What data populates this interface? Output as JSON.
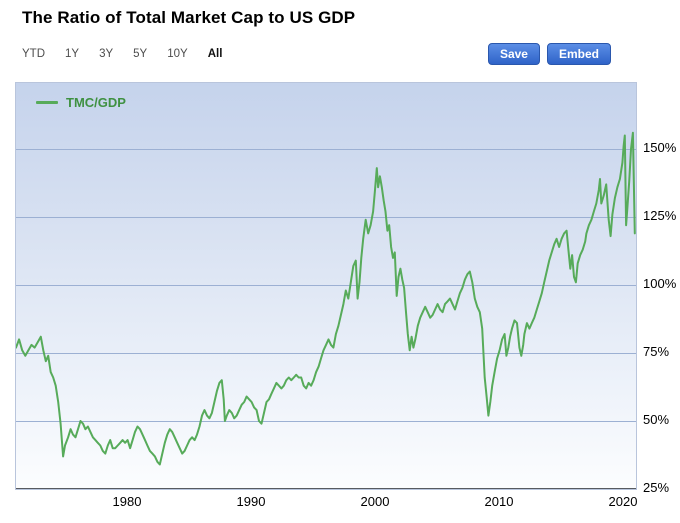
{
  "header": {
    "title": "The Ratio of Total Market Cap to US GDP"
  },
  "toolbar": {
    "ranges": [
      "YTD",
      "1Y",
      "3Y",
      "5Y",
      "10Y",
      "All"
    ],
    "active_range": "All",
    "save_label": "Save",
    "embed_label": "Embed"
  },
  "colors": {
    "button_blue": "#2f63c8",
    "line_green": "#57ab5a",
    "grid_blue": "#9cb0d3",
    "plot_gradient_top": "#c5d3ec"
  },
  "chart_data": {
    "type": "line",
    "title": "The Ratio of Total Market Cap to US GDP",
    "grid": true,
    "legend_position": "top-left",
    "xlim": [
      1971,
      2021
    ],
    "ylim": [
      25,
      174.3
    ],
    "x_ticks": [
      1980,
      1990,
      2000,
      2010,
      2020
    ],
    "y_ticks": [
      {
        "value": 150,
        "label": "150%"
      },
      {
        "value": 125,
        "label": "125%"
      },
      {
        "value": 100,
        "label": "100%"
      },
      {
        "value": 75,
        "label": "75%"
      },
      {
        "value": 50,
        "label": "50%"
      },
      {
        "value": 25,
        "label": "25%"
      }
    ],
    "y_gridlines": [
      50,
      75,
      100,
      125,
      150
    ],
    "series": [
      {
        "name": "TMC/GDP",
        "color": "#57ab5a",
        "points": [
          [
            1971,
            77
          ],
          [
            1971.25,
            80
          ],
          [
            1971.5,
            76
          ],
          [
            1971.75,
            74
          ],
          [
            1972,
            76
          ],
          [
            1972.25,
            78
          ],
          [
            1972.5,
            77
          ],
          [
            1972.75,
            79
          ],
          [
            1973,
            81
          ],
          [
            1973.2,
            76
          ],
          [
            1973.4,
            72
          ],
          [
            1973.6,
            74
          ],
          [
            1973.8,
            68
          ],
          [
            1974,
            66
          ],
          [
            1974.2,
            63
          ],
          [
            1974.4,
            57
          ],
          [
            1974.6,
            49
          ],
          [
            1974.8,
            37
          ],
          [
            1974.95,
            41
          ],
          [
            1975.2,
            44
          ],
          [
            1975.4,
            47
          ],
          [
            1975.6,
            45
          ],
          [
            1975.8,
            44
          ],
          [
            1976,
            47
          ],
          [
            1976.2,
            50
          ],
          [
            1976.4,
            49
          ],
          [
            1976.6,
            47
          ],
          [
            1976.8,
            48
          ],
          [
            1977,
            46
          ],
          [
            1977.2,
            44
          ],
          [
            1977.4,
            43
          ],
          [
            1977.6,
            42
          ],
          [
            1977.8,
            41
          ],
          [
            1978,
            39
          ],
          [
            1978.2,
            38
          ],
          [
            1978.4,
            41
          ],
          [
            1978.6,
            43
          ],
          [
            1978.8,
            40
          ],
          [
            1979,
            40
          ],
          [
            1979.2,
            41
          ],
          [
            1979.4,
            42
          ],
          [
            1979.6,
            43
          ],
          [
            1979.8,
            42
          ],
          [
            1980,
            43
          ],
          [
            1980.2,
            40
          ],
          [
            1980.4,
            43
          ],
          [
            1980.6,
            46
          ],
          [
            1980.8,
            48
          ],
          [
            1981,
            47
          ],
          [
            1981.2,
            45
          ],
          [
            1981.4,
            43
          ],
          [
            1981.6,
            41
          ],
          [
            1981.8,
            39
          ],
          [
            1982,
            38
          ],
          [
            1982.2,
            37
          ],
          [
            1982.4,
            35
          ],
          [
            1982.6,
            34
          ],
          [
            1982.8,
            38
          ],
          [
            1983,
            42
          ],
          [
            1983.2,
            45
          ],
          [
            1983.4,
            47
          ],
          [
            1983.6,
            46
          ],
          [
            1983.8,
            44
          ],
          [
            1984,
            42
          ],
          [
            1984.2,
            40
          ],
          [
            1984.4,
            38
          ],
          [
            1984.6,
            39
          ],
          [
            1984.8,
            41
          ],
          [
            1985,
            43
          ],
          [
            1985.2,
            44
          ],
          [
            1985.4,
            43
          ],
          [
            1985.6,
            45
          ],
          [
            1985.8,
            48
          ],
          [
            1986,
            52
          ],
          [
            1986.2,
            54
          ],
          [
            1986.4,
            52
          ],
          [
            1986.6,
            51
          ],
          [
            1986.8,
            53
          ],
          [
            1987,
            57
          ],
          [
            1987.2,
            61
          ],
          [
            1987.4,
            64
          ],
          [
            1987.6,
            65
          ],
          [
            1987.75,
            58
          ],
          [
            1987.85,
            50
          ],
          [
            1988,
            52
          ],
          [
            1988.2,
            54
          ],
          [
            1988.4,
            53
          ],
          [
            1988.6,
            51
          ],
          [
            1988.8,
            52
          ],
          [
            1989,
            54
          ],
          [
            1989.2,
            56
          ],
          [
            1989.4,
            57
          ],
          [
            1989.6,
            59
          ],
          [
            1989.8,
            58
          ],
          [
            1990,
            57
          ],
          [
            1990.2,
            55
          ],
          [
            1990.4,
            54
          ],
          [
            1990.6,
            50
          ],
          [
            1990.8,
            49
          ],
          [
            1991,
            53
          ],
          [
            1991.2,
            57
          ],
          [
            1991.4,
            58
          ],
          [
            1991.6,
            60
          ],
          [
            1991.8,
            62
          ],
          [
            1992,
            64
          ],
          [
            1992.2,
            63
          ],
          [
            1992.4,
            62
          ],
          [
            1992.6,
            63
          ],
          [
            1992.8,
            65
          ],
          [
            1993,
            66
          ],
          [
            1993.2,
            65
          ],
          [
            1993.4,
            66
          ],
          [
            1993.6,
            67
          ],
          [
            1993.8,
            66
          ],
          [
            1994,
            66
          ],
          [
            1994.2,
            63
          ],
          [
            1994.4,
            62
          ],
          [
            1994.6,
            64
          ],
          [
            1994.8,
            63
          ],
          [
            1995,
            65
          ],
          [
            1995.2,
            68
          ],
          [
            1995.4,
            70
          ],
          [
            1995.6,
            73
          ],
          [
            1995.8,
            76
          ],
          [
            1996,
            78
          ],
          [
            1996.2,
            80
          ],
          [
            1996.4,
            78
          ],
          [
            1996.6,
            77
          ],
          [
            1996.8,
            82
          ],
          [
            1997,
            85
          ],
          [
            1997.2,
            89
          ],
          [
            1997.4,
            93
          ],
          [
            1997.6,
            98
          ],
          [
            1997.8,
            95
          ],
          [
            1998,
            101
          ],
          [
            1998.2,
            107
          ],
          [
            1998.4,
            109
          ],
          [
            1998.55,
            95
          ],
          [
            1998.7,
            101
          ],
          [
            1998.85,
            110
          ],
          [
            1999,
            117
          ],
          [
            1999.2,
            124
          ],
          [
            1999.4,
            119
          ],
          [
            1999.6,
            122
          ],
          [
            1999.8,
            127
          ],
          [
            1999.95,
            135
          ],
          [
            2000.1,
            143
          ],
          [
            2000.2,
            136
          ],
          [
            2000.35,
            140
          ],
          [
            2000.5,
            136
          ],
          [
            2000.65,
            131
          ],
          [
            2000.8,
            127
          ],
          [
            2000.95,
            120
          ],
          [
            2001.1,
            122
          ],
          [
            2001.25,
            114
          ],
          [
            2001.4,
            110
          ],
          [
            2001.55,
            112
          ],
          [
            2001.7,
            96
          ],
          [
            2001.85,
            103
          ],
          [
            2002,
            106
          ],
          [
            2002.15,
            102
          ],
          [
            2002.3,
            99
          ],
          [
            2002.45,
            90
          ],
          [
            2002.6,
            82
          ],
          [
            2002.75,
            76
          ],
          [
            2002.9,
            81
          ],
          [
            2003.05,
            77
          ],
          [
            2003.2,
            80
          ],
          [
            2003.4,
            85
          ],
          [
            2003.6,
            88
          ],
          [
            2003.8,
            90
          ],
          [
            2004,
            92
          ],
          [
            2004.2,
            90
          ],
          [
            2004.4,
            88
          ],
          [
            2004.6,
            89
          ],
          [
            2004.8,
            91
          ],
          [
            2005,
            93
          ],
          [
            2005.2,
            91
          ],
          [
            2005.4,
            90
          ],
          [
            2005.6,
            93
          ],
          [
            2005.8,
            94
          ],
          [
            2006,
            95
          ],
          [
            2006.2,
            93
          ],
          [
            2006.4,
            91
          ],
          [
            2006.6,
            94
          ],
          [
            2006.8,
            97
          ],
          [
            2007,
            99
          ],
          [
            2007.2,
            102
          ],
          [
            2007.4,
            104
          ],
          [
            2007.6,
            105
          ],
          [
            2007.8,
            101
          ],
          [
            2008,
            95
          ],
          [
            2008.2,
            92
          ],
          [
            2008.4,
            90
          ],
          [
            2008.6,
            84
          ],
          [
            2008.8,
            66
          ],
          [
            2008.95,
            59
          ],
          [
            2009.1,
            52
          ],
          [
            2009.25,
            57
          ],
          [
            2009.4,
            63
          ],
          [
            2009.6,
            68
          ],
          [
            2009.8,
            73
          ],
          [
            2010,
            76
          ],
          [
            2010.2,
            80
          ],
          [
            2010.4,
            82
          ],
          [
            2010.55,
            74
          ],
          [
            2010.7,
            77
          ],
          [
            2010.85,
            81
          ],
          [
            2011,
            84
          ],
          [
            2011.2,
            87
          ],
          [
            2011.4,
            86
          ],
          [
            2011.6,
            77
          ],
          [
            2011.75,
            74
          ],
          [
            2011.9,
            78
          ],
          [
            2012,
            82
          ],
          [
            2012.2,
            86
          ],
          [
            2012.4,
            84
          ],
          [
            2012.6,
            86
          ],
          [
            2012.8,
            88
          ],
          [
            2013,
            91
          ],
          [
            2013.2,
            94
          ],
          [
            2013.4,
            97
          ],
          [
            2013.6,
            101
          ],
          [
            2013.8,
            105
          ],
          [
            2014,
            109
          ],
          [
            2014.2,
            112
          ],
          [
            2014.4,
            115
          ],
          [
            2014.6,
            117
          ],
          [
            2014.8,
            114
          ],
          [
            2015,
            117
          ],
          [
            2015.2,
            119
          ],
          [
            2015.4,
            120
          ],
          [
            2015.55,
            113
          ],
          [
            2015.7,
            106
          ],
          [
            2015.85,
            111
          ],
          [
            2016,
            103
          ],
          [
            2016.15,
            101
          ],
          [
            2016.3,
            108
          ],
          [
            2016.5,
            111
          ],
          [
            2016.7,
            113
          ],
          [
            2016.9,
            116
          ],
          [
            2017,
            119
          ],
          [
            2017.2,
            122
          ],
          [
            2017.4,
            124
          ],
          [
            2017.6,
            127
          ],
          [
            2017.8,
            130
          ],
          [
            2018,
            135
          ],
          [
            2018.1,
            139
          ],
          [
            2018.2,
            130
          ],
          [
            2018.4,
            133
          ],
          [
            2018.6,
            137
          ],
          [
            2018.8,
            124
          ],
          [
            2018.95,
            118
          ],
          [
            2019.1,
            126
          ],
          [
            2019.3,
            132
          ],
          [
            2019.5,
            136
          ],
          [
            2019.7,
            139
          ],
          [
            2019.9,
            145
          ],
          [
            2020,
            151
          ],
          [
            2020.1,
            155
          ],
          [
            2020.2,
            122
          ],
          [
            2020.3,
            128
          ],
          [
            2020.45,
            138
          ],
          [
            2020.6,
            150
          ],
          [
            2020.75,
            156
          ],
          [
            2020.9,
            119
          ]
        ]
      }
    ]
  }
}
